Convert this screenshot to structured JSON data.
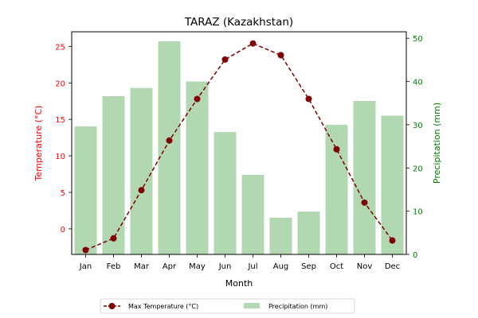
{
  "chart_data": {
    "type": "bar",
    "title": "TARAZ (Kazakhstan)",
    "xlabel": "Month",
    "ylabel_left": "Temperature (°C)",
    "ylabel_right": "Precipitation (mm)",
    "categories": [
      "Jan",
      "Feb",
      "Mar",
      "Apr",
      "May",
      "Jun",
      "Jul",
      "Aug",
      "Sep",
      "Oct",
      "Nov",
      "Dec"
    ],
    "series": [
      {
        "name": "Max Temperature (°C)",
        "type": "line",
        "axis": "left",
        "color": "#800000",
        "line_style": "dashed",
        "marker": "circle",
        "values": [
          -2.9,
          -1.3,
          5.3,
          12.1,
          17.8,
          23.2,
          25.4,
          23.8,
          17.8,
          10.9,
          3.6,
          -1.6
        ]
      },
      {
        "name": "Precipitation (mm)",
        "type": "bar",
        "axis": "right",
        "color": "#b2d8b2",
        "values": [
          29.6,
          36.6,
          38.5,
          49.3,
          40.0,
          28.3,
          18.4,
          8.5,
          9.9,
          30.0,
          35.5,
          32.1
        ]
      }
    ],
    "ylim_left": [
      -3.5,
      27
    ],
    "ylim_right": [
      0,
      51.5
    ],
    "yticks_left": [
      "0",
      "5",
      "10",
      "15",
      "20",
      "25"
    ],
    "yticks_right": [
      "0",
      "10",
      "20",
      "30",
      "40",
      "50"
    ],
    "left_axis_color": "#ff0000",
    "right_axis_color": "#008000",
    "legend_position": "bottom-center"
  }
}
